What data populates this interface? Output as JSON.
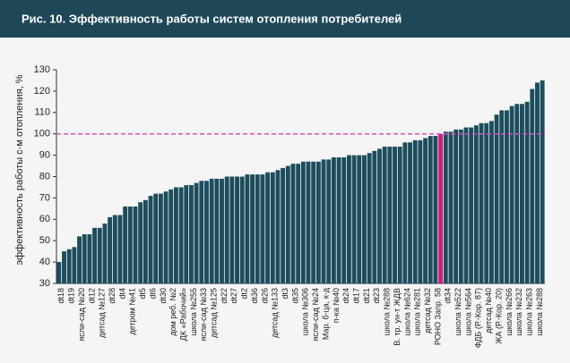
{
  "chart_data": {
    "type": "bar",
    "title": "Рис. 10. Эффективность работы систем отопления потребителей",
    "y_label": "эффективность работы с-м отопления, %",
    "categories": [
      "dt18",
      null,
      "dt19",
      null,
      "ясли-сад №20",
      null,
      "dt12",
      null,
      "детсад №127",
      null,
      "dt28",
      null,
      "dt4",
      null,
      "детром №41",
      null,
      "dt5",
      null,
      "dt6",
      null,
      "dt30",
      null,
      "дом реб. №2",
      null,
      "ДК «Рабочий»",
      null,
      "школа №255",
      null,
      "ясли-сад №33",
      null,
      "детсад №125",
      null,
      "dt22",
      null,
      "dt27",
      null,
      "dt2",
      null,
      "dt36",
      null,
      "dt26",
      null,
      "детсад №133",
      null,
      "dt3",
      null,
      "dt35",
      null,
      "школа №306",
      null,
      "ясли-сад №24",
      null,
      "Мар. б-ца, к-д",
      null,
      "п-ка №40",
      null,
      "dt24",
      null,
      "dt17",
      null,
      "dt21",
      null,
      "dt23",
      null,
      "школа №288",
      null,
      "В. тр. ун-т ЖДВ",
      null,
      "школа №624",
      null,
      "школа №281",
      null,
      "детсад №32",
      null,
      "РОНО Запр. 58",
      null,
      "dt34",
      null,
      "школа №522",
      null,
      "школа №564",
      null,
      "ФДБ (Р.-Кор. 87)",
      null,
      "детсад №40",
      null,
      "ЖА (Р.-Кор. 20)",
      null,
      "школа №266",
      null,
      "школа №232",
      null,
      "школа №263",
      null,
      "школа №288",
      null
    ],
    "values": [
      40,
      45,
      46,
      47,
      52,
      53,
      53,
      56,
      56,
      58,
      61,
      62,
      62,
      66,
      66,
      66,
      68,
      69,
      71,
      72,
      72,
      73,
      74,
      75,
      75,
      76,
      76,
      77,
      78,
      78,
      79,
      79,
      79,
      80,
      80,
      80,
      80,
      81,
      81,
      81,
      81,
      82,
      82,
      83,
      84,
      85,
      86,
      86,
      87,
      87,
      87,
      87,
      88,
      88,
      89,
      89,
      89,
      90,
      90,
      90,
      90,
      91,
      92,
      93,
      94,
      94,
      94,
      94,
      96,
      96,
      97,
      97,
      98,
      99,
      99,
      100,
      101,
      101,
      102,
      102,
      103,
      103,
      104,
      105,
      105,
      106,
      109,
      111,
      111,
      113,
      114,
      114,
      115,
      121,
      124,
      125
    ],
    "color": "#1d4d5d",
    "highlight": {
      "index": 75,
      "color": "#d4177f"
    },
    "reference_line": {
      "value": 100,
      "color": "#d94fc0"
    },
    "ylim": [
      30,
      130
    ],
    "yticks": [
      30,
      40,
      50,
      60,
      70,
      80,
      90,
      100,
      110,
      120,
      130
    ]
  }
}
